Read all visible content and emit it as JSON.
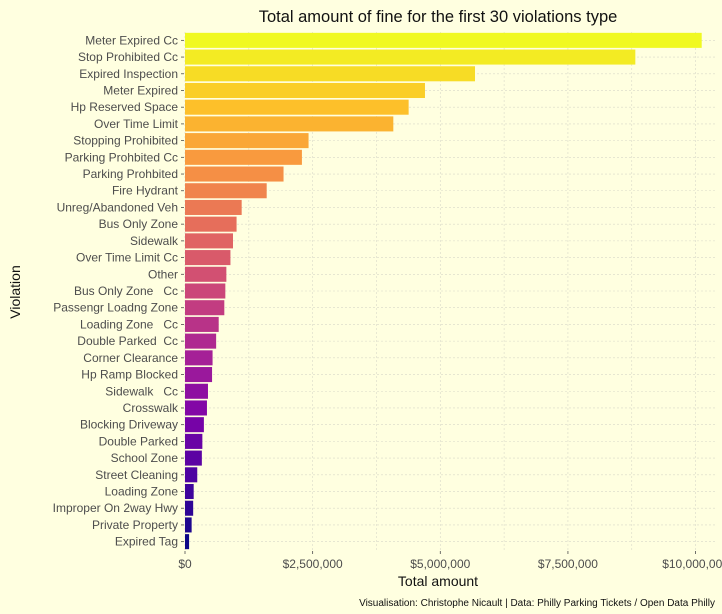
{
  "chart_data": {
    "type": "bar",
    "orientation": "horizontal",
    "title": "Total amount of fine for the first 30 violations type",
    "xlabel": "Total amount",
    "ylabel": "Violation",
    "caption": "Visualisation: Christophe Nicault | Data: Philly Parking Tickets / Open Data Philly",
    "xlim": [
      0,
      10400000
    ],
    "x_ticks": [
      0,
      2500000,
      5000000,
      7500000,
      10000000
    ],
    "x_tick_labels": [
      "$0",
      "$2,500,000",
      "$5,000,000",
      "$7,500,000",
      "$10,000,000"
    ],
    "grid": true,
    "color_scale": "plasma",
    "categories": [
      "Meter Expired Cc",
      "Stop Prohibited Cc",
      "Expired Inspection",
      "Meter Expired",
      "Hp Reserved Space",
      "Over Time Limit",
      "Stopping Prohibited",
      "Parking Prohbited Cc",
      "Parking Prohbited",
      "Fire Hydrant",
      "Unreg/Abandoned Veh",
      "Bus Only Zone",
      "Sidewalk",
      "Over Time Limit Cc",
      "Other",
      "Bus Only Zone   Cc",
      "Passengr Loadng Zone",
      "Loading Zone   Cc",
      "Double Parked  Cc",
      "Corner Clearance",
      "Hp Ramp Blocked",
      "Sidewalk   Cc",
      "Crosswalk",
      "Blocking Driveway",
      "Double Parked",
      "School Zone",
      "Street Cleaning",
      "Loading Zone",
      "Improper On 2way Hwy",
      "Private Property",
      "Expired Tag"
    ],
    "values": [
      10120000,
      8820000,
      5680000,
      4700000,
      4380000,
      4080000,
      2420000,
      2290000,
      1930000,
      1600000,
      1110000,
      1010000,
      940000,
      890000,
      810000,
      790000,
      770000,
      660000,
      610000,
      540000,
      530000,
      450000,
      430000,
      370000,
      340000,
      330000,
      240000,
      170000,
      160000,
      130000,
      80000
    ]
  }
}
